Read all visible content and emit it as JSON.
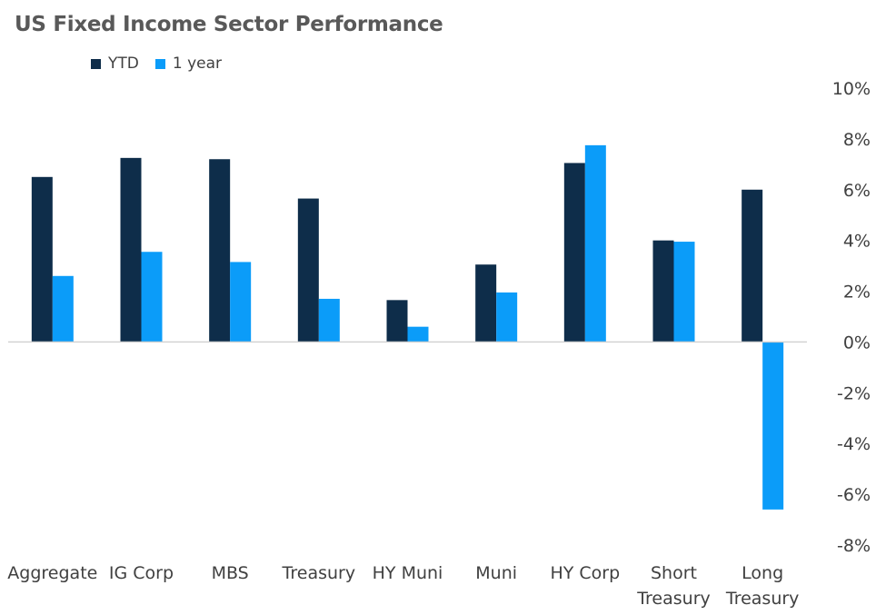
{
  "chart_data": {
    "type": "bar",
    "title": "US Fixed Income Sector Performance",
    "categories": [
      "Aggregate",
      "IG Corp",
      "MBS",
      "Treasury",
      "HY Muni",
      "Muni",
      "HY Corp",
      "Short Treasury",
      "Long Treasury"
    ],
    "category_lines": [
      [
        "Aggregate"
      ],
      [
        "IG Corp"
      ],
      [
        "MBS"
      ],
      [
        "Treasury"
      ],
      [
        "HY Muni"
      ],
      [
        "Muni"
      ],
      [
        "HY Corp"
      ],
      [
        "Short",
        "Treasury"
      ],
      [
        "Long",
        "Treasury"
      ]
    ],
    "series": [
      {
        "name": "YTD",
        "color": "#0e2d4a",
        "values": [
          6.5,
          7.25,
          7.2,
          5.65,
          1.65,
          3.05,
          7.05,
          4.0,
          6.0
        ]
      },
      {
        "name": "1 year",
        "color": "#0b9cf9",
        "values": [
          2.6,
          3.55,
          3.15,
          1.7,
          0.6,
          1.95,
          7.75,
          3.95,
          -6.6
        ]
      }
    ],
    "ylim": [
      -8,
      10
    ],
    "yticks": [
      "10%",
      "8%",
      "6%",
      "4%",
      "2%",
      "0%",
      "-2%",
      "-4%",
      "-6%",
      "-8%"
    ],
    "y_axis_position": "right",
    "legend_position": "top-left",
    "grid": false,
    "xlabel": "",
    "ylabel": ""
  }
}
